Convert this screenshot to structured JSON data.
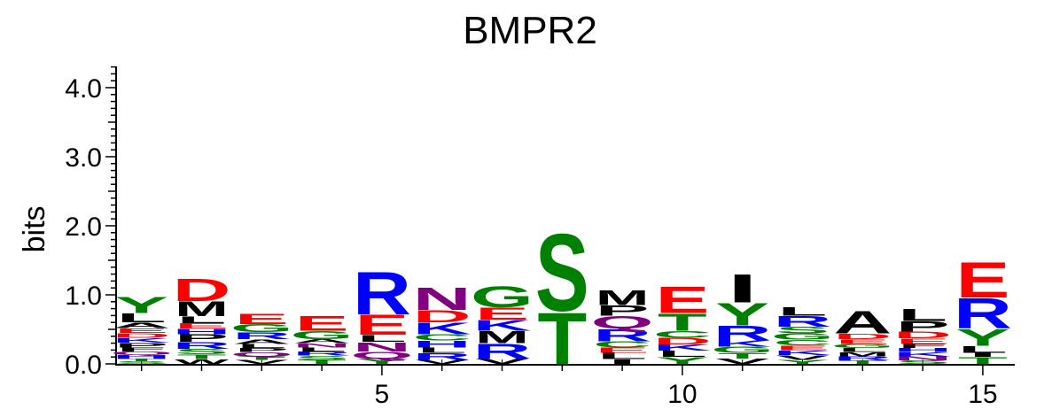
{
  "chart_data": {
    "type": "sequence-logo",
    "title": "BMPR2",
    "ylabel": "bits",
    "xlabel": "",
    "ylim": [
      0,
      4.3
    ],
    "xlim": [
      0.5,
      15.5
    ],
    "y_ticks": [
      0.0,
      1.0,
      2.0,
      3.0,
      4.0
    ],
    "y_tick_labels": [
      "0.0",
      "1.0",
      "2.0",
      "3.0",
      "4.0"
    ],
    "x_ticks": [
      5,
      10,
      15
    ],
    "x_tick_labels": [
      "5",
      "10",
      "15"
    ],
    "colors": {
      "hydrophobic": "#000000",
      "acidic": "#ff0000",
      "basic": "#0000ff",
      "polar": "#008000",
      "amide": "#800080"
    },
    "residue_colors": {
      "A": "#000000",
      "F": "#000000",
      "I": "#000000",
      "L": "#000000",
      "M": "#000000",
      "P": "#000000",
      "V": "#000000",
      "W": "#000000",
      "D": "#ff0000",
      "E": "#ff0000",
      "H": "#0000ff",
      "K": "#0000ff",
      "R": "#0000ff",
      "C": "#008000",
      "G": "#008000",
      "S": "#008000",
      "T": "#008000",
      "Y": "#008000",
      "N": "#800080",
      "Q": "#800080"
    },
    "positions": [
      {
        "pos": 1,
        "letters": [
          {
            "aa": "S",
            "bits": 0.04
          },
          {
            "aa": "T",
            "bits": 0.04
          },
          {
            "aa": "H",
            "bits": 0.05
          },
          {
            "aa": "Q",
            "bits": 0.05
          },
          {
            "aa": "F",
            "bits": 0.06
          },
          {
            "aa": "P",
            "bits": 0.07
          },
          {
            "aa": "K",
            "bits": 0.07
          },
          {
            "aa": "D",
            "bits": 0.07
          },
          {
            "aa": "E",
            "bits": 0.07
          },
          {
            "aa": "A",
            "bits": 0.08
          },
          {
            "aa": "L",
            "bits": 0.14
          },
          {
            "aa": "Y",
            "bits": 0.24
          }
        ]
      },
      {
        "pos": 2,
        "letters": [
          {
            "aa": "W",
            "bits": 0.07
          },
          {
            "aa": "T",
            "bits": 0.07
          },
          {
            "aa": "S",
            "bits": 0.08
          },
          {
            "aa": "R",
            "bits": 0.1
          },
          {
            "aa": "P",
            "bits": 0.11
          },
          {
            "aa": "H",
            "bits": 0.08
          },
          {
            "aa": "E",
            "bits": 0.08
          },
          {
            "aa": "L",
            "bits": 0.1
          },
          {
            "aa": "M",
            "bits": 0.22
          },
          {
            "aa": "D",
            "bits": 0.33
          }
        ]
      },
      {
        "pos": 3,
        "letters": [
          {
            "aa": "V",
            "bits": 0.06
          },
          {
            "aa": "T",
            "bits": 0.05
          },
          {
            "aa": "Q",
            "bits": 0.06
          },
          {
            "aa": "P",
            "bits": 0.06
          },
          {
            "aa": "L",
            "bits": 0.06
          },
          {
            "aa": "A",
            "bits": 0.07
          },
          {
            "aa": "R",
            "bits": 0.1
          },
          {
            "aa": "G",
            "bits": 0.12
          },
          {
            "aa": "E",
            "bits": 0.15
          }
        ]
      },
      {
        "pos": 4,
        "letters": [
          {
            "aa": "T",
            "bits": 0.06
          },
          {
            "aa": "S",
            "bits": 0.06
          },
          {
            "aa": "R",
            "bits": 0.06
          },
          {
            "aa": "L",
            "bits": 0.06
          },
          {
            "aa": "N",
            "bits": 0.06
          },
          {
            "aa": "A",
            "bits": 0.06
          },
          {
            "aa": "G",
            "bits": 0.12
          },
          {
            "aa": "E",
            "bits": 0.22
          }
        ]
      },
      {
        "pos": 5,
        "letters": [
          {
            "aa": "Y",
            "bits": 0.08
          },
          {
            "aa": "Q",
            "bits": 0.1
          },
          {
            "aa": "N",
            "bits": 0.14
          },
          {
            "aa": "L",
            "bits": 0.1
          },
          {
            "aa": "E",
            "bits": 0.3
          },
          {
            "aa": "R",
            "bits": 0.63
          }
        ]
      },
      {
        "pos": 6,
        "letters": [
          {
            "aa": "V",
            "bits": 0.06
          },
          {
            "aa": "R",
            "bits": 0.1
          },
          {
            "aa": "L",
            "bits": 0.08
          },
          {
            "aa": "H",
            "bits": 0.1
          },
          {
            "aa": "C",
            "bits": 0.09
          },
          {
            "aa": "K",
            "bits": 0.17
          },
          {
            "aa": "D",
            "bits": 0.18
          },
          {
            "aa": "N",
            "bits": 0.33
          }
        ]
      },
      {
        "pos": 7,
        "letters": [
          {
            "aa": "V",
            "bits": 0.08
          },
          {
            "aa": "R",
            "bits": 0.22
          },
          {
            "aa": "M",
            "bits": 0.18
          },
          {
            "aa": "K",
            "bits": 0.16
          },
          {
            "aa": "E",
            "bits": 0.18
          },
          {
            "aa": "G",
            "bits": 0.32
          }
        ]
      },
      {
        "pos": 8,
        "letters": [
          {
            "aa": "T",
            "bits": 0.77
          },
          {
            "aa": "S",
            "bits": 1.15
          }
        ]
      },
      {
        "pos": 9,
        "letters": [
          {
            "aa": "I",
            "bits": 0.07
          },
          {
            "aa": "L",
            "bits": 0.09
          },
          {
            "aa": "E",
            "bits": 0.08
          },
          {
            "aa": "C",
            "bits": 0.09
          },
          {
            "aa": "R",
            "bits": 0.18
          },
          {
            "aa": "Q",
            "bits": 0.19
          },
          {
            "aa": "P",
            "bits": 0.15
          },
          {
            "aa": "M",
            "bits": 0.22
          }
        ]
      },
      {
        "pos": 10,
        "letters": [
          {
            "aa": "Y",
            "bits": 0.1
          },
          {
            "aa": "L",
            "bits": 0.09
          },
          {
            "aa": "K",
            "bits": 0.09
          },
          {
            "aa": "D",
            "bits": 0.1
          },
          {
            "aa": "C",
            "bits": 0.1
          },
          {
            "aa": "T",
            "bits": 0.26
          },
          {
            "aa": "E",
            "bits": 0.39
          }
        ]
      },
      {
        "pos": 11,
        "letters": [
          {
            "aa": "V",
            "bits": 0.08
          },
          {
            "aa": "T",
            "bits": 0.08
          },
          {
            "aa": "G",
            "bits": 0.09
          },
          {
            "aa": "K",
            "bits": 0.09
          },
          {
            "aa": "R",
            "bits": 0.22
          },
          {
            "aa": "Y",
            "bits": 0.33
          },
          {
            "aa": "I",
            "bits": 0.42
          }
        ]
      },
      {
        "pos": 12,
        "letters": [
          {
            "aa": "Y",
            "bits": 0.06
          },
          {
            "aa": "V",
            "bits": 0.07
          },
          {
            "aa": "K",
            "bits": 0.07
          },
          {
            "aa": "E",
            "bits": 0.07
          },
          {
            "aa": "C",
            "bits": 0.08
          },
          {
            "aa": "G",
            "bits": 0.09
          },
          {
            "aa": "S",
            "bits": 0.1
          },
          {
            "aa": "R",
            "bits": 0.16
          },
          {
            "aa": "L",
            "bits": 0.13
          }
        ]
      },
      {
        "pos": 13,
        "letters": [
          {
            "aa": "T",
            "bits": 0.05
          },
          {
            "aa": "R",
            "bits": 0.06
          },
          {
            "aa": "M",
            "bits": 0.06
          },
          {
            "aa": "L",
            "bits": 0.06
          },
          {
            "aa": "G",
            "bits": 0.06
          },
          {
            "aa": "E",
            "bits": 0.07
          },
          {
            "aa": "D",
            "bits": 0.08
          },
          {
            "aa": "A",
            "bits": 0.33
          }
        ]
      },
      {
        "pos": 14,
        "letters": [
          {
            "aa": "S",
            "bits": 0.05
          },
          {
            "aa": "N",
            "bits": 0.06
          },
          {
            "aa": "K",
            "bits": 0.06
          },
          {
            "aa": "H",
            "bits": 0.06
          },
          {
            "aa": "F",
            "bits": 0.06
          },
          {
            "aa": "E",
            "bits": 0.08
          },
          {
            "aa": "D",
            "bits": 0.1
          },
          {
            "aa": "P",
            "bits": 0.15
          },
          {
            "aa": "L",
            "bits": 0.18
          }
        ]
      },
      {
        "pos": 15,
        "letters": [
          {
            "aa": "T",
            "bits": 0.1
          },
          {
            "aa": "I",
            "bits": 0.06
          },
          {
            "aa": "L",
            "bits": 0.1
          },
          {
            "aa": "Y",
            "bits": 0.25
          },
          {
            "aa": "R",
            "bits": 0.45
          },
          {
            "aa": "E",
            "bits": 0.53
          }
        ]
      }
    ]
  }
}
